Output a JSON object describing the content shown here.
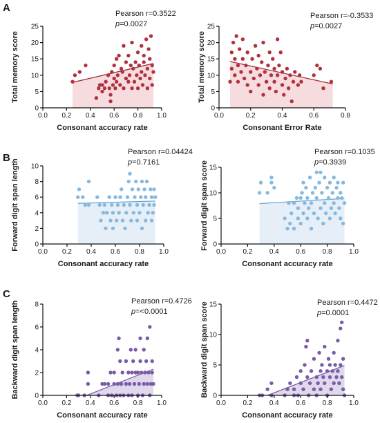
{
  "panel_labels": {
    "a": "A",
    "b": "B",
    "c": "C"
  },
  "chart_data": [
    {
      "type": "scatter",
      "xlabel": "Consonant accuracy rate",
      "ylabel": "Total memory score",
      "xlim": [
        0,
        1.0
      ],
      "ylim": [
        0,
        25
      ],
      "xticks": [
        "0.0",
        "0.2",
        "0.4",
        "0.6",
        "0.8",
        "1.0"
      ],
      "yticks": [
        "0",
        "5",
        "10",
        "15",
        "20",
        "25"
      ],
      "r_text": "Pearson r=0.3522",
      "p_text": "p=0.0027",
      "point_color": "#b0323e",
      "line_color": "#a3303b",
      "fill_color": "#f6dcdf",
      "x": [
        0.25,
        0.27,
        0.31,
        0.36,
        0.45,
        0.47,
        0.48,
        0.5,
        0.5,
        0.52,
        0.53,
        0.55,
        0.56,
        0.57,
        0.57,
        0.58,
        0.59,
        0.6,
        0.6,
        0.61,
        0.62,
        0.62,
        0.63,
        0.64,
        0.65,
        0.66,
        0.67,
        0.68,
        0.68,
        0.7,
        0.7,
        0.72,
        0.72,
        0.73,
        0.74,
        0.75,
        0.75,
        0.76,
        0.77,
        0.78,
        0.79,
        0.8,
        0.8,
        0.81,
        0.82,
        0.83,
        0.83,
        0.84,
        0.85,
        0.85,
        0.86,
        0.87,
        0.88,
        0.88,
        0.89,
        0.9,
        0.9,
        0.91,
        0.92,
        0.92,
        0.93
      ],
      "y": [
        8,
        10,
        11,
        13,
        3,
        6,
        7,
        5,
        7,
        6,
        8,
        10,
        6,
        2,
        4,
        11,
        7,
        9,
        13,
        6,
        8,
        15,
        10,
        16,
        7,
        12,
        11,
        6,
        19,
        9,
        14,
        8,
        16,
        10,
        13,
        6,
        20,
        12,
        8,
        14,
        10,
        6,
        17,
        13,
        9,
        11,
        19,
        7,
        14,
        16,
        10,
        21,
        12,
        6,
        18,
        9,
        15,
        22,
        13,
        7,
        11
      ],
      "fit": {
        "x": [
          0.25,
          0.93
        ],
        "y": [
          7.8,
          13.6
        ]
      }
    },
    {
      "type": "scatter",
      "xlabel": "Consonant Error Rate",
      "ylabel": "Total memory score",
      "xlim": [
        0,
        0.8
      ],
      "ylim": [
        0,
        25
      ],
      "xticks": [
        "0.0",
        "0.2",
        "0.4",
        "0.6",
        "0.8"
      ],
      "yticks": [
        "0",
        "5",
        "10",
        "15",
        "20",
        "25"
      ],
      "r_text": "Pearson r=-0.3533",
      "p_text": "p=0.0027",
      "point_color": "#b0323e",
      "line_color": "#a3303b",
      "fill_color": "#f6dcdf",
      "x": [
        0.07,
        0.08,
        0.08,
        0.09,
        0.1,
        0.1,
        0.11,
        0.12,
        0.12,
        0.13,
        0.14,
        0.15,
        0.15,
        0.16,
        0.17,
        0.18,
        0.18,
        0.2,
        0.2,
        0.21,
        0.22,
        0.23,
        0.24,
        0.25,
        0.25,
        0.26,
        0.27,
        0.28,
        0.28,
        0.29,
        0.3,
        0.31,
        0.32,
        0.32,
        0.33,
        0.34,
        0.35,
        0.35,
        0.36,
        0.37,
        0.37,
        0.38,
        0.39,
        0.4,
        0.4,
        0.41,
        0.42,
        0.43,
        0.44,
        0.45,
        0.46,
        0.47,
        0.48,
        0.5,
        0.51,
        0.52,
        0.6,
        0.62,
        0.64,
        0.66,
        0.71
      ],
      "y": [
        8,
        12,
        17,
        20,
        10,
        15,
        22,
        13,
        8,
        18,
        11,
        15,
        21,
        9,
        13,
        7,
        17,
        11,
        5,
        15,
        9,
        19,
        12,
        7,
        16,
        10,
        14,
        4,
        20,
        11,
        8,
        13,
        17,
        6,
        10,
        15,
        8,
        12,
        5,
        21,
        10,
        13,
        17,
        7,
        11,
        4,
        9,
        12,
        6,
        10,
        2,
        8,
        11,
        7,
        10,
        8,
        10,
        13,
        12,
        6,
        8
      ],
      "fit": {
        "x": [
          0.07,
          0.72
        ],
        "y": [
          14.2,
          7.3
        ]
      }
    },
    {
      "type": "scatter",
      "xlabel": "Consonant accuracy rate",
      "ylabel": "Forward digit span length",
      "xlim": [
        0,
        1.0
      ],
      "ylim": [
        0,
        10
      ],
      "xticks": [
        "0.0",
        "0.2",
        "0.4",
        "0.6",
        "0.8",
        "1.0"
      ],
      "yticks": [
        "0",
        "2",
        "4",
        "6",
        "8",
        "10"
      ],
      "r_text": "Pearson r=0.04424",
      "p_text": "p=0.7161",
      "point_color": "#86b9df",
      "line_color": "#6aa5d4",
      "fill_color": "#e6eff7",
      "x": [
        0.29,
        0.3,
        0.33,
        0.35,
        0.38,
        0.38,
        0.45,
        0.47,
        0.48,
        0.5,
        0.51,
        0.52,
        0.53,
        0.55,
        0.56,
        0.57,
        0.58,
        0.58,
        0.6,
        0.61,
        0.62,
        0.63,
        0.64,
        0.65,
        0.66,
        0.67,
        0.68,
        0.69,
        0.7,
        0.71,
        0.72,
        0.72,
        0.73,
        0.74,
        0.75,
        0.76,
        0.77,
        0.78,
        0.78,
        0.79,
        0.8,
        0.81,
        0.82,
        0.82,
        0.83,
        0.84,
        0.85,
        0.85,
        0.86,
        0.87,
        0.88,
        0.89,
        0.9,
        0.9,
        0.91,
        0.92,
        0.92,
        0.93
      ],
      "y": [
        6,
        7,
        6,
        5,
        8,
        5,
        6,
        5,
        3,
        4,
        5,
        2,
        4,
        6,
        3,
        5,
        4,
        2,
        6,
        3,
        5,
        4,
        6,
        7,
        3,
        5,
        2,
        4,
        6,
        8,
        9,
        5,
        3,
        7,
        4,
        6,
        8,
        3,
        5,
        7,
        4,
        6,
        8,
        2,
        5,
        7,
        3,
        6,
        8,
        4,
        5,
        7,
        3,
        6,
        4,
        5,
        7,
        6
      ],
      "fit": {
        "x": [
          0.29,
          0.93
        ],
        "y": [
          5.2,
          5.5
        ]
      }
    },
    {
      "type": "scatter",
      "xlabel": "Consonant accuracy rate",
      "ylabel": "Forward digit span score",
      "xlim": [
        0,
        1.0
      ],
      "ylim": [
        0,
        15
      ],
      "xticks": [
        "0.0",
        "0.2",
        "0.4",
        "0.6",
        "0.8",
        "1.0"
      ],
      "yticks": [
        "0",
        "5",
        "10",
        "15"
      ],
      "r_text": "Pearson r=0.1035",
      "p_text": "p=0.3939",
      "point_color": "#86b9df",
      "line_color": "#6aa5d4",
      "fill_color": "#e6eff7",
      "x": [
        0.29,
        0.3,
        0.35,
        0.38,
        0.38,
        0.4,
        0.48,
        0.5,
        0.51,
        0.52,
        0.53,
        0.55,
        0.55,
        0.57,
        0.58,
        0.58,
        0.6,
        0.6,
        0.61,
        0.62,
        0.62,
        0.63,
        0.64,
        0.65,
        0.65,
        0.66,
        0.67,
        0.68,
        0.68,
        0.69,
        0.7,
        0.71,
        0.72,
        0.72,
        0.73,
        0.74,
        0.75,
        0.75,
        0.76,
        0.77,
        0.78,
        0.78,
        0.79,
        0.8,
        0.81,
        0.82,
        0.82,
        0.83,
        0.84,
        0.85,
        0.85,
        0.86,
        0.87,
        0.88,
        0.88,
        0.89,
        0.9,
        0.9,
        0.91,
        0.92,
        0.92,
        0.93
      ],
      "y": [
        10,
        12,
        10,
        13,
        12,
        11,
        5,
        3,
        8,
        4,
        6,
        8,
        3,
        9,
        5,
        7,
        9,
        4,
        10,
        12,
        6,
        8,
        11,
        9,
        5,
        7,
        13,
        8,
        3,
        10,
        6,
        11,
        14,
        9,
        5,
        12,
        7,
        14,
        10,
        4,
        8,
        13,
        6,
        11,
        9,
        5,
        12,
        7,
        10,
        8,
        13,
        6,
        11,
        9,
        12,
        7,
        10,
        5,
        9,
        12,
        4,
        8
      ],
      "fit": {
        "x": [
          0.29,
          0.93
        ],
        "y": [
          7.9,
          8.9
        ]
      }
    },
    {
      "type": "scatter",
      "xlabel": "Consonant accuracy rate",
      "ylabel": "Backward digit span length",
      "xlim": [
        0,
        1.0
      ],
      "ylim": [
        0,
        8
      ],
      "xticks": [
        "0.0",
        "0.2",
        "0.4",
        "0.6",
        "0.8",
        "1.0"
      ],
      "yticks": [
        "0",
        "2",
        "4",
        "6",
        "8"
      ],
      "r_text": "Pearson r=0.4726",
      "p_text": "p=<0.0001",
      "point_color": "#7a5ca6",
      "line_color": "#7a5ca6",
      "fill_color": "#e0d8ed",
      "x": [
        0.29,
        0.3,
        0.35,
        0.38,
        0.38,
        0.47,
        0.5,
        0.52,
        0.55,
        0.55,
        0.57,
        0.58,
        0.6,
        0.6,
        0.62,
        0.63,
        0.63,
        0.64,
        0.65,
        0.65,
        0.66,
        0.67,
        0.68,
        0.7,
        0.7,
        0.72,
        0.72,
        0.73,
        0.74,
        0.75,
        0.75,
        0.76,
        0.77,
        0.78,
        0.78,
        0.8,
        0.8,
        0.81,
        0.82,
        0.82,
        0.83,
        0.84,
        0.85,
        0.85,
        0.86,
        0.87,
        0.88,
        0.88,
        0.89,
        0.9,
        0.9,
        0.91,
        0.92,
        0.92,
        0.93
      ],
      "y": [
        0,
        0,
        0,
        2,
        1,
        0,
        1,
        1,
        0,
        1,
        2,
        0,
        1,
        2,
        0,
        1,
        4,
        5,
        3,
        0,
        1,
        2,
        0,
        1,
        3,
        2,
        0,
        1,
        4,
        2,
        0,
        3,
        1,
        2,
        4,
        0,
        2,
        1,
        3,
        5,
        2,
        0,
        1,
        4,
        2,
        3,
        1,
        5,
        2,
        0,
        6,
        1,
        3,
        2,
        1
      ],
      "fit": {
        "x": [
          0.37,
          0.93
        ],
        "y": [
          0,
          2.3
        ]
      }
    },
    {
      "type": "scatter",
      "xlabel": "Consonant accuracy rate",
      "ylabel": "Backward digit span score",
      "xlim": [
        0,
        1.0
      ],
      "ylim": [
        0,
        15
      ],
      "xticks": [
        "0.0",
        "0.2",
        "0.4",
        "0.6",
        "0.8",
        "1.0"
      ],
      "yticks": [
        "0",
        "5",
        "10",
        "15"
      ],
      "r_text": "Pearson r=0.4472",
      "p_text": "p=0.0001",
      "point_color": "#7a5ca6",
      "line_color": "#7a5ca6",
      "fill_color": "#e0d8ed",
      "x": [
        0.29,
        0.31,
        0.35,
        0.38,
        0.38,
        0.48,
        0.5,
        0.52,
        0.55,
        0.55,
        0.57,
        0.58,
        0.6,
        0.6,
        0.62,
        0.63,
        0.64,
        0.65,
        0.65,
        0.66,
        0.67,
        0.68,
        0.7,
        0.7,
        0.72,
        0.72,
        0.73,
        0.74,
        0.75,
        0.75,
        0.76,
        0.77,
        0.78,
        0.78,
        0.8,
        0.8,
        0.81,
        0.82,
        0.82,
        0.83,
        0.84,
        0.85,
        0.85,
        0.86,
        0.87,
        0.88,
        0.88,
        0.89,
        0.9,
        0.9,
        0.91,
        0.91,
        0.92,
        0.92,
        0.93
      ],
      "y": [
        0,
        0,
        1,
        2,
        0,
        0,
        1,
        2,
        0,
        1,
        3,
        0,
        2,
        4,
        1,
        5,
        8,
        9,
        3,
        0,
        2,
        4,
        1,
        6,
        3,
        0,
        2,
        7,
        4,
        1,
        5,
        3,
        2,
        8,
        0,
        4,
        6,
        3,
        5,
        1,
        4,
        2,
        7,
        5,
        3,
        9,
        4,
        2,
        11,
        5,
        12,
        3,
        1,
        6,
        0
      ],
      "fit": {
        "x": [
          0.35,
          0.93
        ],
        "y": [
          0,
          4.9
        ]
      }
    }
  ]
}
